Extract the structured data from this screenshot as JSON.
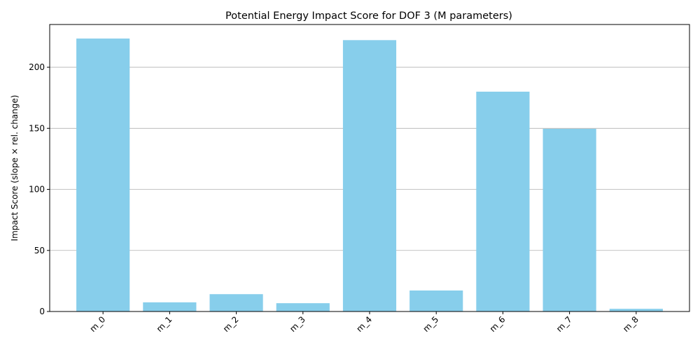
{
  "chart_data": {
    "type": "bar",
    "title": "Potential Energy Impact Score for DOF 3 (M parameters)",
    "xlabel": "",
    "ylabel": "Impact Score (slope × rel. change)",
    "categories": [
      "m_0",
      "m_1",
      "m_2",
      "m_3",
      "m_4",
      "m_5",
      "m_6",
      "m_7",
      "m_8"
    ],
    "values": [
      223.5,
      7.5,
      14.2,
      6.8,
      222.2,
      17.2,
      180.0,
      149.6,
      2.2
    ],
    "ylim": [
      0,
      235
    ],
    "yticks": [
      0,
      50,
      100,
      150,
      200
    ],
    "grid": "y",
    "bar_color": "#87ceeb",
    "grid_color": "#b0b0b0"
  }
}
